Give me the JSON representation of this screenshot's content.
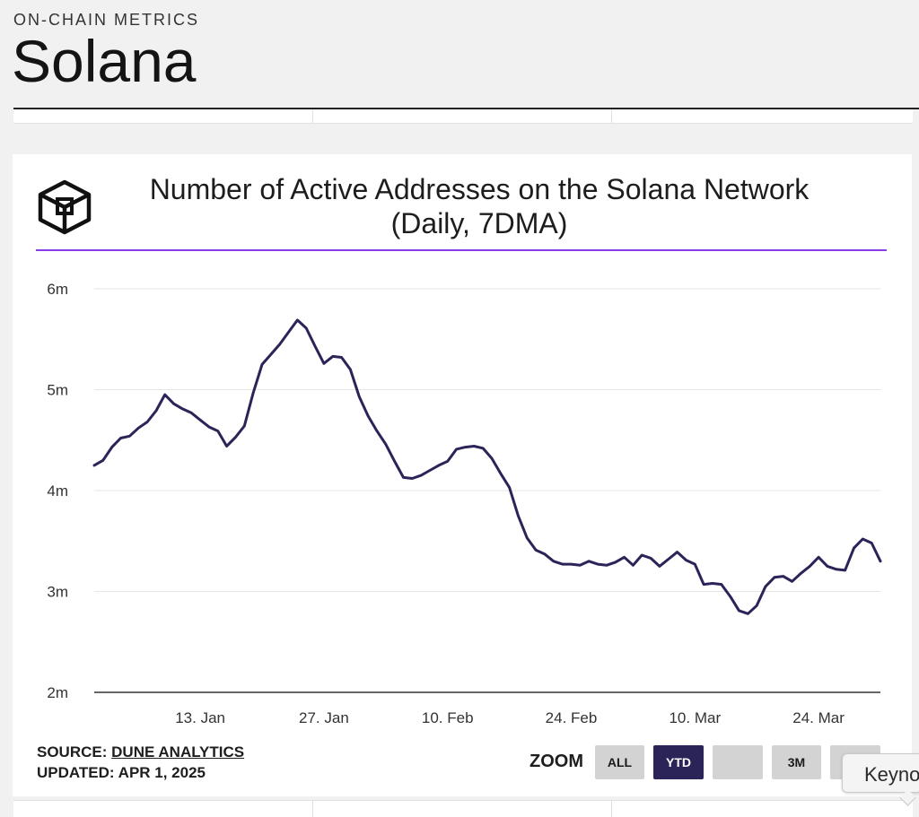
{
  "header": {
    "kicker": "ON-CHAIN METRICS",
    "title": "Solana"
  },
  "card": {
    "logo_icon": "cube-logo-icon",
    "source_prefix": "SOURCE:",
    "source_link": "DUNE ANALYTICS",
    "updated": "UPDATED: APR 1, 2025",
    "zoom_label": "ZOOM",
    "zoom_buttons": [
      "ALL",
      "YTD",
      "",
      "3M",
      ""
    ],
    "zoom_active": "YTD"
  },
  "tooltip": {
    "text": "Keyno"
  },
  "colors": {
    "line": "#2b2458",
    "accent_rule": "#8a3ee8",
    "active_button": "#2b2458",
    "button": "#d3d3d3",
    "grid": "#e6e6e6"
  },
  "chart_data": {
    "type": "line",
    "title": "Number of Active Addresses on the Solana Network",
    "subtitle": "(Daily, 7DMA)",
    "ylim": [
      2,
      6
    ],
    "yticks": [
      2,
      3,
      4,
      5,
      6
    ],
    "ytick_labels": [
      "2m",
      "3m",
      "4m",
      "5m",
      "6m"
    ],
    "xlim": [
      "2025-01-01",
      "2025-03-31"
    ],
    "xtick_dates": [
      "2025-01-13",
      "2025-01-27",
      "2025-02-10",
      "2025-02-24",
      "2025-03-10",
      "2025-03-24"
    ],
    "xtick_labels": [
      "13. Jan",
      "27. Jan",
      "10. Feb",
      "24. Feb",
      "10. Mar",
      "24. Mar"
    ],
    "grid": true,
    "legend": "none",
    "series": [
      {
        "unit": "millions",
        "x": [
          "2025-01-01",
          "2025-01-02",
          "2025-01-03",
          "2025-01-04",
          "2025-01-05",
          "2025-01-06",
          "2025-01-07",
          "2025-01-08",
          "2025-01-09",
          "2025-01-10",
          "2025-01-11",
          "2025-01-12",
          "2025-01-13",
          "2025-01-14",
          "2025-01-15",
          "2025-01-16",
          "2025-01-17",
          "2025-01-18",
          "2025-01-19",
          "2025-01-20",
          "2025-01-21",
          "2025-01-22",
          "2025-01-23",
          "2025-01-24",
          "2025-01-25",
          "2025-01-26",
          "2025-01-27",
          "2025-01-28",
          "2025-01-29",
          "2025-01-30",
          "2025-01-31",
          "2025-02-01",
          "2025-02-02",
          "2025-02-03",
          "2025-02-04",
          "2025-02-05",
          "2025-02-06",
          "2025-02-07",
          "2025-02-08",
          "2025-02-09",
          "2025-02-10",
          "2025-02-11",
          "2025-02-12",
          "2025-02-13",
          "2025-02-14",
          "2025-02-15",
          "2025-02-16",
          "2025-02-17",
          "2025-02-18",
          "2025-02-19",
          "2025-02-20",
          "2025-02-21",
          "2025-02-22",
          "2025-02-23",
          "2025-02-24",
          "2025-02-25",
          "2025-02-26",
          "2025-02-27",
          "2025-02-28",
          "2025-03-01",
          "2025-03-02",
          "2025-03-03",
          "2025-03-04",
          "2025-03-05",
          "2025-03-06",
          "2025-03-07",
          "2025-03-08",
          "2025-03-09",
          "2025-03-10",
          "2025-03-11",
          "2025-03-12",
          "2025-03-13",
          "2025-03-14",
          "2025-03-15",
          "2025-03-16",
          "2025-03-17",
          "2025-03-18",
          "2025-03-19",
          "2025-03-20",
          "2025-03-21",
          "2025-03-22",
          "2025-03-23",
          "2025-03-24",
          "2025-03-25",
          "2025-03-26",
          "2025-03-27",
          "2025-03-28",
          "2025-03-29",
          "2025-03-30",
          "2025-03-31"
        ],
        "values": [
          4.25,
          4.3,
          4.43,
          4.52,
          4.54,
          4.62,
          4.68,
          4.79,
          4.95,
          4.86,
          4.81,
          4.77,
          4.7,
          4.63,
          4.59,
          4.44,
          4.53,
          4.64,
          4.97,
          5.25,
          5.35,
          5.45,
          5.57,
          5.69,
          5.61,
          5.43,
          5.26,
          5.33,
          5.32,
          5.2,
          4.93,
          4.74,
          4.59,
          4.46,
          4.29,
          4.13,
          4.12,
          4.15,
          4.2,
          4.25,
          4.29,
          4.41,
          4.43,
          4.44,
          4.42,
          4.32,
          4.17,
          4.03,
          3.75,
          3.53,
          3.41,
          3.37,
          3.3,
          3.27,
          3.27,
          3.26,
          3.3,
          3.27,
          3.26,
          3.29,
          3.34,
          3.26,
          3.36,
          3.33,
          3.25,
          3.32,
          3.39,
          3.31,
          3.27,
          3.07,
          3.08,
          3.07,
          2.95,
          2.81,
          2.78,
          2.86,
          3.05,
          3.14,
          3.15,
          3.1,
          3.18,
          3.25,
          3.34,
          3.25,
          3.22,
          3.21,
          3.43,
          3.52,
          3.48,
          3.3
        ]
      }
    ]
  }
}
